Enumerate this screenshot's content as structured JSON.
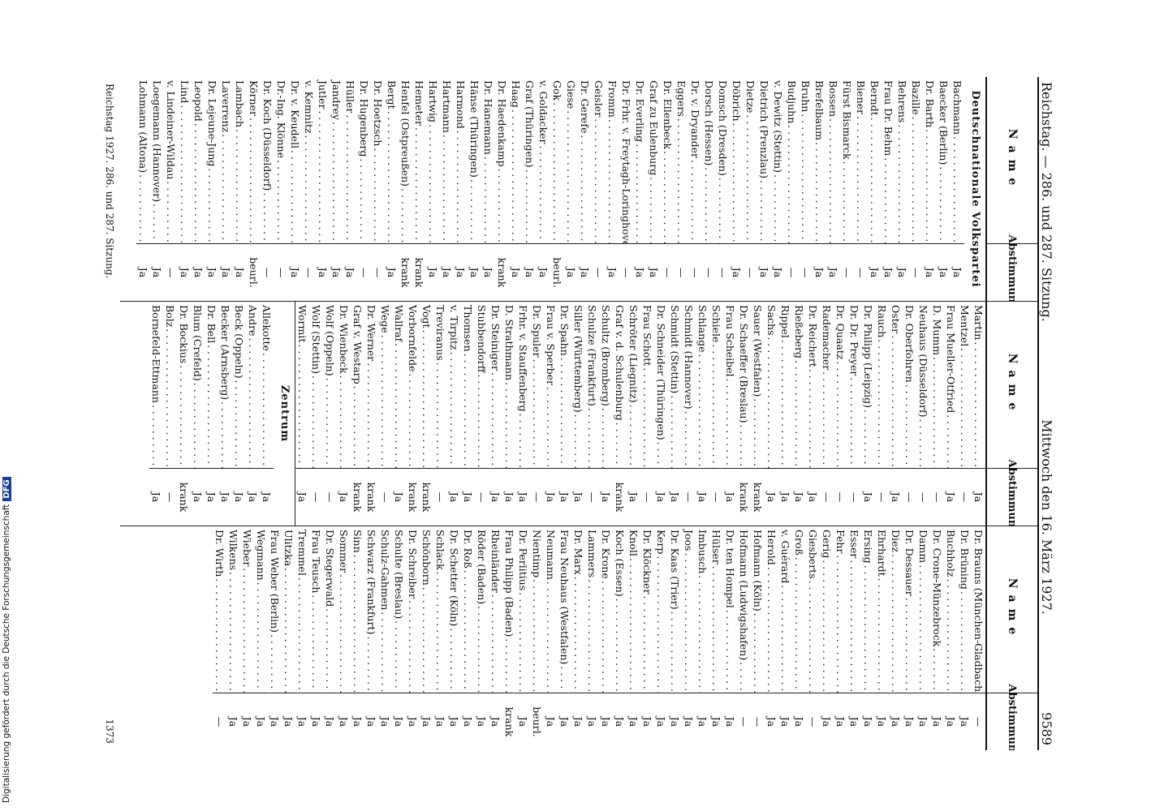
{
  "header": {
    "left": "Reichstag. — 286. und 287. Sitzung.",
    "center": "Mittwoch den 16. März 1927.",
    "page": "9589"
  },
  "columns": [
    {
      "name_header": "Name",
      "vote_header": "Abstimmung",
      "rows": [
        {
          "section": "Deutschnationale Volkspartei"
        },
        {
          "name": "Bachmann",
          "vote": "Ja"
        },
        {
          "name": "Baecker (Berlin)",
          "vote": "Ja"
        },
        {
          "name": "Dr. Barth",
          "vote": "Ja"
        },
        {
          "name": "Bazille",
          "vote": "—"
        },
        {
          "name": "Behrens",
          "vote": "Ja"
        },
        {
          "name": "Frau Dr. Behm",
          "vote": "Ja"
        },
        {
          "name": "Berndt",
          "vote": "Ja"
        },
        {
          "name": "Biener",
          "vote": "—"
        },
        {
          "name": "Fürst Bismarck",
          "vote": "—"
        },
        {
          "name": "Bossen",
          "vote": "Ja"
        },
        {
          "name": "Brefelbaum",
          "vote": "Ja"
        },
        {
          "name": "Bruhn",
          "vote": "—"
        },
        {
          "name": "Budjuhn",
          "vote": "—"
        },
        {
          "name": "v. Dewitz (Stettin)",
          "vote": "Ja"
        },
        {
          "name": "Dietrich (Prenzlau)",
          "vote": "Ja"
        },
        {
          "name": "Dietze",
          "vote": "—"
        },
        {
          "name": "Döbrich",
          "vote": "Ja"
        },
        {
          "name": "Domsch (Dresden)",
          "vote": "—"
        },
        {
          "name": "Dorsch (Hessen)",
          "vote": "—"
        },
        {
          "name": "Dr. v. Dryander",
          "vote": "—"
        },
        {
          "name": "Eggers",
          "vote": "—"
        },
        {
          "name": "Dr. Ellenbeck",
          "vote": "—"
        },
        {
          "name": "Graf zu Eulenburg",
          "vote": "Ja"
        },
        {
          "name": "Dr. Everling",
          "vote": "Ja"
        },
        {
          "name": "Dr. Frhr. v. Freytagh-Loringhoven",
          "vote": "—"
        },
        {
          "name": "Fromm",
          "vote": "Ja"
        },
        {
          "name": "Geisler",
          "vote": "—"
        },
        {
          "name": "Dr. Gerefe",
          "vote": "Ja"
        },
        {
          "name": "Giese",
          "vote": "Ja"
        },
        {
          "name": "Gok",
          "vote": "beurl."
        },
        {
          "name": "v. Goldacker",
          "vote": "Ja"
        },
        {
          "name": "Graf (Thüringen)",
          "vote": "Ja"
        },
        {
          "name": "Haag",
          "vote": "Ja"
        },
        {
          "name": "Dr. Haedenkamp",
          "vote": "krank"
        },
        {
          "name": "Dr. Hanemann",
          "vote": "Ja"
        },
        {
          "name": "Hänse (Thüringen)",
          "vote": "Ja"
        },
        {
          "name": "Harmond",
          "vote": "Ja"
        },
        {
          "name": "Hartmann",
          "vote": "Ja"
        },
        {
          "name": "Hartwig",
          "vote": "Ja"
        },
        {
          "name": "Hemeter",
          "vote": "krank"
        },
        {
          "name": "Henfel (Ostpreußen)",
          "vote": "krank"
        },
        {
          "name": "Bergt",
          "vote": "Ja"
        },
        {
          "name": "Dr. Hoetzsch",
          "vote": "—"
        },
        {
          "name": "Dr. Hugenberg",
          "vote": "—"
        },
        {
          "name": "Hüller",
          "vote": "Ja"
        },
        {
          "name": "Jandrey",
          "vote": "Ja"
        },
        {
          "name": "Jutler",
          "vote": "Ja"
        },
        {
          "name": "v. Kemnitz",
          "vote": "—"
        },
        {
          "name": "Dr. v. Keudell",
          "vote": "Ja"
        },
        {
          "name": "Dr.-Ing. Klönne",
          "vote": "—"
        },
        {
          "name": "Dr. Koch (Düsseldorf)",
          "vote": "—"
        },
        {
          "name": "Körner",
          "vote": "beurl."
        },
        {
          "name": "Lambach",
          "vote": "Ja"
        },
        {
          "name": "Laverrenz",
          "vote": "Ja"
        },
        {
          "name": "Dr. Lejeune-Jung",
          "vote": "Ja"
        },
        {
          "name": "Leopold",
          "vote": "Ja"
        },
        {
          "name": "Lind",
          "vote": "Ja"
        },
        {
          "name": "v. Lindeiner-Wildau",
          "vote": "—"
        },
        {
          "name": "Loegemann (Hannover)",
          "vote": "Ja"
        },
        {
          "name": "Lohmann (Altona)",
          "vote": "Ja"
        }
      ]
    },
    {
      "name_header": "Name",
      "vote_header": "Abstimmung",
      "rows": [
        {
          "name": "Martin",
          "vote": "Ja"
        },
        {
          "name": "Mentzel",
          "vote": "—"
        },
        {
          "name": "Frau Mueller-Otfried",
          "vote": "Ja"
        },
        {
          "name": "D. Mumm",
          "vote": "—"
        },
        {
          "name": "Neuhaus (Düsseldorf)",
          "vote": "—"
        },
        {
          "name": "Dr. Oberfohren",
          "vote": "—"
        },
        {
          "name": "Oster",
          "vote": "Ja"
        },
        {
          "name": "Rauch",
          "vote": "—"
        },
        {
          "name": "Dr. Philipp (Leipzig)",
          "vote": "Ja"
        },
        {
          "name": "Dr. Dr. Preyer",
          "vote": "—"
        },
        {
          "name": "Dr. Quaatz",
          "vote": "—"
        },
        {
          "name": "Rademacher",
          "vote": "—"
        },
        {
          "name": "Dr. Reichert",
          "vote": "Ja"
        },
        {
          "name": "Rießeberg",
          "vote": "Ja"
        },
        {
          "name": "Rippel",
          "vote": "Ja"
        },
        {
          "name": "Sachs",
          "vote": "Ja"
        },
        {
          "name": "Sauer (Westfalen)",
          "vote": "krank"
        },
        {
          "name": "Dr. Schaeffer (Breslau)",
          "vote": "krank"
        },
        {
          "name": "Frau Scheibel",
          "vote": "Ja"
        },
        {
          "name": "Schiele",
          "vote": "—"
        },
        {
          "name": "Schlange",
          "vote": "Ja"
        },
        {
          "name": "Schmidt (Hannover)",
          "vote": "—"
        },
        {
          "name": "Schmidt (Stettin)",
          "vote": "Ja"
        },
        {
          "name": "Dr. Schneider (Thüringen)",
          "vote": "Ja"
        },
        {
          "name": "Frau Schott",
          "vote": "—"
        },
        {
          "name": "Schröter (Liegnitz)",
          "vote": "Ja"
        },
        {
          "name": "Graf v. d. Schulenburg",
          "vote": "krank"
        },
        {
          "name": "Schultz (Bromberg)",
          "vote": "Ja"
        },
        {
          "name": "Schulze (Frankfurt)",
          "vote": "—"
        },
        {
          "name": "Siller (Württemberg)",
          "vote": "Ja"
        },
        {
          "name": "Dr. Spahn",
          "vote": "Ja"
        },
        {
          "name": "Frau v. Sperber",
          "vote": "Ja"
        },
        {
          "name": "Dr. Spuler",
          "vote": "—"
        },
        {
          "name": "Frhr. v. Stauffenberg",
          "vote": "Ja"
        },
        {
          "name": "D. Strathmann",
          "vote": "Ja"
        },
        {
          "name": "Dr. Steiniger",
          "vote": "Ja"
        },
        {
          "name": "Stubbendorff",
          "vote": "—"
        },
        {
          "name": "Thomsen",
          "vote": "Ja"
        },
        {
          "name": "v. Tirpitz",
          "vote": "Ja"
        },
        {
          "name": "Treviranus",
          "vote": "—"
        },
        {
          "name": "Vogt",
          "vote": "krank"
        },
        {
          "name": "Vorbornfelde",
          "vote": "krank"
        },
        {
          "name": "Wallraf",
          "vote": "Ja"
        },
        {
          "name": "Wege",
          "vote": "—"
        },
        {
          "name": "Dr. Werner",
          "vote": "krank"
        },
        {
          "name": "Graf v. Westarp",
          "vote": "krank"
        },
        {
          "name": "Dr. Wienbeck",
          "vote": "Ja"
        },
        {
          "name": "Wolf (Oppeln)",
          "vote": "—"
        },
        {
          "name": "Wolf (Stettin)",
          "vote": "—"
        },
        {
          "name": "Wormit",
          "vote": "Ja"
        },
        {
          "section": "Zentrum"
        },
        {
          "name": "Allekotte",
          "vote": "Ja"
        },
        {
          "name": "Andre",
          "vote": "Ja"
        },
        {
          "name": "Beck (Oppeln)",
          "vote": "Ja"
        },
        {
          "name": "Becker (Arnsberg)",
          "vote": "Ja"
        },
        {
          "name": "Dr. Bell",
          "vote": "Ja"
        },
        {
          "name": "Blum (Crefeld)",
          "vote": "Ja"
        },
        {
          "name": "Dr. Bockius",
          "vote": "krank"
        },
        {
          "name": "Bolz",
          "vote": "—"
        },
        {
          "name": "Bornefeld-Ettmann",
          "vote": "Ja"
        }
      ]
    },
    {
      "name_header": "Name",
      "vote_header": "Abstimmung",
      "rows": [
        {
          "name": "Dr. Brauns (München-Gladbach)",
          "vote": "—"
        },
        {
          "name": "Dr. Brüning",
          "vote": "Ja"
        },
        {
          "name": "Buchholz",
          "vote": "Ja"
        },
        {
          "name": "Dr. Crone-Münzebrock",
          "vote": "Ja"
        },
        {
          "name": "Damm",
          "vote": "Ja"
        },
        {
          "name": "Dr. Dessauer",
          "vote": "Ja"
        },
        {
          "name": "Diez",
          "vote": "Ja"
        },
        {
          "name": "Ehrhardt",
          "vote": "Ja"
        },
        {
          "name": "Ersing",
          "vote": "Ja"
        },
        {
          "name": "Esser",
          "vote": "Ja"
        },
        {
          "name": "Fehr",
          "vote": "Ja"
        },
        {
          "name": "Gerig",
          "vote": "Ja"
        },
        {
          "name": "Giesberts",
          "vote": "—"
        },
        {
          "name": "Groß",
          "vote": "Ja"
        },
        {
          "name": "v. Guérard",
          "vote": "Ja"
        },
        {
          "name": "Herold",
          "vote": "Ja"
        },
        {
          "name": "Hofmann (Köln)",
          "vote": "—"
        },
        {
          "name": "Hofmann (Ludwigshafen)",
          "vote": "—"
        },
        {
          "name": "Dr. ten Hompel",
          "vote": "Ja"
        },
        {
          "name": "Hülser",
          "vote": "Ja"
        },
        {
          "name": "Imbusch",
          "vote": "Ja"
        },
        {
          "name": "Joos",
          "vote": "Ja"
        },
        {
          "name": "Dr. Kaas (Trier)",
          "vote": "Ja"
        },
        {
          "name": "Kerp",
          "vote": "Ja"
        },
        {
          "name": "Dr. Klöckner",
          "vote": "Ja"
        },
        {
          "name": "Knoll",
          "vote": "Ja"
        },
        {
          "name": "Koch (Essen)",
          "vote": "Ja"
        },
        {
          "name": "Dr. Krone",
          "vote": "Ja"
        },
        {
          "name": "Lammers",
          "vote": "Ja"
        },
        {
          "name": "Dr. Marx",
          "vote": "Ja"
        },
        {
          "name": "Frau Neuhaus (Westfalen)",
          "vote": "Ja"
        },
        {
          "name": "Neumann",
          "vote": "Ja"
        },
        {
          "name": "Nientimp",
          "vote": "beurl."
        },
        {
          "name": "Dr. Perlitius",
          "vote": "Ja"
        },
        {
          "name": "Frau Philipp (Baden)",
          "vote": "krank"
        },
        {
          "name": "Rheinländer",
          "vote": "Ja"
        },
        {
          "name": "Röder (Baden)",
          "vote": "Ja"
        },
        {
          "name": "Dr. Roß",
          "vote": "Ja"
        },
        {
          "name": "Dr. Schetter (Köln)",
          "vote": "Ja"
        },
        {
          "name": "Schlack",
          "vote": "Ja"
        },
        {
          "name": "Schönborn",
          "vote": "Ja"
        },
        {
          "name": "Dr. Schreiber",
          "vote": "Ja"
        },
        {
          "name": "Schulte (Breslau)",
          "vote": "Ja"
        },
        {
          "name": "Schulz-Gahmen",
          "vote": "Ja"
        },
        {
          "name": "Schwarz (Frankfurt)",
          "vote": "Ja"
        },
        {
          "name": "Sinn",
          "vote": "Ja"
        },
        {
          "name": "Sommer",
          "vote": "Ja"
        },
        {
          "name": "Dr. Stegerwald",
          "vote": "Ja"
        },
        {
          "name": "Frau Teusch",
          "vote": "Ja"
        },
        {
          "name": "Tremmel",
          "vote": "Ja"
        },
        {
          "name": "Ulitzka",
          "vote": "Ja"
        },
        {
          "name": "Frau Weber (Berlin)",
          "vote": "Ja"
        },
        {
          "name": "Wegmann",
          "vote": "Ja"
        },
        {
          "name": "Wieber",
          "vote": "Ja"
        },
        {
          "name": "Wilkens",
          "vote": "Ja"
        },
        {
          "name": "Dr. Wirth",
          "vote": "—"
        }
      ]
    }
  ],
  "footer": {
    "left": "Reichstag 1927. 286. und 287. Sitzung.",
    "page": "1373"
  },
  "sidebar": {
    "text": "Digitalisierung gefördert durch die Deutsche Forschungsgemeinschaft",
    "logo": "DFG"
  }
}
